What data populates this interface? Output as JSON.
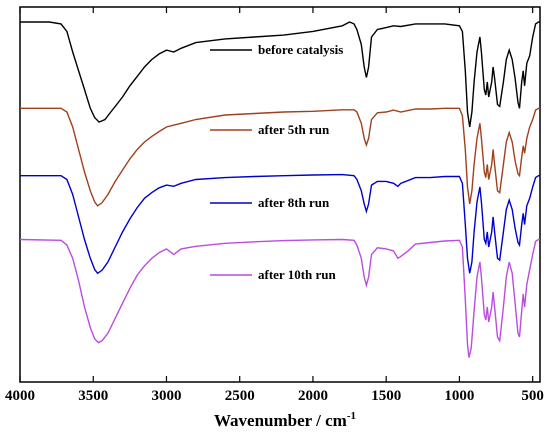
{
  "chart_data": {
    "type": "line",
    "xlabel": "Wavenumber / cm",
    "xlabel_sup": "-1",
    "xlim": [
      4000,
      450
    ],
    "x_reversed": true,
    "xticks": [
      4000,
      3500,
      3000,
      2500,
      2000,
      1500,
      1000,
      500
    ],
    "yticks_shown": false,
    "ylim": [
      0,
      1
    ],
    "legend_placement": "inline-per-series",
    "series": [
      {
        "name": "before catalysis",
        "color": "#000000",
        "points": [
          [
            4000,
            0.96
          ],
          [
            3800,
            0.96
          ],
          [
            3720,
            0.955
          ],
          [
            3680,
            0.935
          ],
          [
            3640,
            0.88
          ],
          [
            3600,
            0.83
          ],
          [
            3560,
            0.78
          ],
          [
            3520,
            0.73
          ],
          [
            3490,
            0.705
          ],
          [
            3460,
            0.693
          ],
          [
            3420,
            0.7
          ],
          [
            3380,
            0.72
          ],
          [
            3340,
            0.74
          ],
          [
            3300,
            0.76
          ],
          [
            3250,
            0.79
          ],
          [
            3200,
            0.815
          ],
          [
            3150,
            0.84
          ],
          [
            3100,
            0.86
          ],
          [
            3050,
            0.875
          ],
          [
            3000,
            0.885
          ],
          [
            2950,
            0.88
          ],
          [
            2900,
            0.89
          ],
          [
            2800,
            0.905
          ],
          [
            2600,
            0.915
          ],
          [
            2400,
            0.92
          ],
          [
            2200,
            0.925
          ],
          [
            2000,
            0.935
          ],
          [
            1800,
            0.95
          ],
          [
            1750,
            0.96
          ],
          [
            1720,
            0.955
          ],
          [
            1700,
            0.94
          ],
          [
            1670,
            0.9
          ],
          [
            1650,
            0.84
          ],
          [
            1635,
            0.812
          ],
          [
            1620,
            0.84
          ],
          [
            1600,
            0.92
          ],
          [
            1560,
            0.94
          ],
          [
            1500,
            0.945
          ],
          [
            1450,
            0.95
          ],
          [
            1400,
            0.948
          ],
          [
            1300,
            0.955
          ],
          [
            1200,
            0.955
          ],
          [
            1100,
            0.955
          ],
          [
            1000,
            0.95
          ],
          [
            980,
            0.935
          ],
          [
            960,
            0.83
          ],
          [
            945,
            0.72
          ],
          [
            930,
            0.68
          ],
          [
            915,
            0.72
          ],
          [
            900,
            0.8
          ],
          [
            880,
            0.88
          ],
          [
            860,
            0.92
          ],
          [
            850,
            0.88
          ],
          [
            830,
            0.78
          ],
          [
            820,
            0.765
          ],
          [
            810,
            0.8
          ],
          [
            800,
            0.76
          ],
          [
            780,
            0.8
          ],
          [
            770,
            0.84
          ],
          [
            760,
            0.81
          ],
          [
            740,
            0.74
          ],
          [
            725,
            0.735
          ],
          [
            700,
            0.8
          ],
          [
            680,
            0.86
          ],
          [
            660,
            0.885
          ],
          [
            640,
            0.86
          ],
          [
            620,
            0.81
          ],
          [
            600,
            0.745
          ],
          [
            590,
            0.73
          ],
          [
            575,
            0.8
          ],
          [
            565,
            0.83
          ],
          [
            555,
            0.79
          ],
          [
            540,
            0.85
          ],
          [
            520,
            0.87
          ],
          [
            500,
            0.92
          ],
          [
            480,
            0.955
          ],
          [
            460,
            0.96
          ],
          [
            450,
            0.96
          ]
        ]
      },
      {
        "name": "after 5th run",
        "color": "#a0401e",
        "points": [
          [
            4000,
            0.73
          ],
          [
            3720,
            0.73
          ],
          [
            3680,
            0.72
          ],
          [
            3640,
            0.68
          ],
          [
            3600,
            0.62
          ],
          [
            3560,
            0.56
          ],
          [
            3520,
            0.51
          ],
          [
            3490,
            0.48
          ],
          [
            3470,
            0.47
          ],
          [
            3440,
            0.478
          ],
          [
            3400,
            0.5
          ],
          [
            3350,
            0.535
          ],
          [
            3300,
            0.565
          ],
          [
            3250,
            0.595
          ],
          [
            3200,
            0.62
          ],
          [
            3150,
            0.64
          ],
          [
            3100,
            0.655
          ],
          [
            3050,
            0.668
          ],
          [
            3000,
            0.68
          ],
          [
            2950,
            0.685
          ],
          [
            2900,
            0.69
          ],
          [
            2800,
            0.7
          ],
          [
            2600,
            0.712
          ],
          [
            2400,
            0.716
          ],
          [
            2200,
            0.72
          ],
          [
            2000,
            0.722
          ],
          [
            1800,
            0.726
          ],
          [
            1720,
            0.726
          ],
          [
            1700,
            0.72
          ],
          [
            1670,
            0.69
          ],
          [
            1650,
            0.65
          ],
          [
            1635,
            0.632
          ],
          [
            1620,
            0.65
          ],
          [
            1600,
            0.7
          ],
          [
            1560,
            0.718
          ],
          [
            1500,
            0.72
          ],
          [
            1450,
            0.725
          ],
          [
            1400,
            0.72
          ],
          [
            1300,
            0.728
          ],
          [
            1200,
            0.728
          ],
          [
            1100,
            0.73
          ],
          [
            1000,
            0.73
          ],
          [
            980,
            0.71
          ],
          [
            960,
            0.62
          ],
          [
            945,
            0.52
          ],
          [
            930,
            0.475
          ],
          [
            915,
            0.51
          ],
          [
            900,
            0.58
          ],
          [
            880,
            0.65
          ],
          [
            860,
            0.69
          ],
          [
            850,
            0.65
          ],
          [
            830,
            0.56
          ],
          [
            820,
            0.545
          ],
          [
            810,
            0.58
          ],
          [
            800,
            0.54
          ],
          [
            780,
            0.58
          ],
          [
            770,
            0.62
          ],
          [
            760,
            0.58
          ],
          [
            740,
            0.51
          ],
          [
            725,
            0.505
          ],
          [
            700,
            0.58
          ],
          [
            680,
            0.64
          ],
          [
            660,
            0.665
          ],
          [
            640,
            0.64
          ],
          [
            620,
            0.59
          ],
          [
            600,
            0.555
          ],
          [
            590,
            0.55
          ],
          [
            575,
            0.6
          ],
          [
            565,
            0.63
          ],
          [
            555,
            0.61
          ],
          [
            540,
            0.65
          ],
          [
            520,
            0.68
          ],
          [
            500,
            0.7
          ],
          [
            480,
            0.725
          ],
          [
            460,
            0.73
          ],
          [
            450,
            0.73
          ]
        ]
      },
      {
        "name": "after 8th run",
        "color": "#0000cc",
        "points": [
          [
            4000,
            0.55
          ],
          [
            3720,
            0.55
          ],
          [
            3680,
            0.54
          ],
          [
            3640,
            0.5
          ],
          [
            3600,
            0.44
          ],
          [
            3560,
            0.38
          ],
          [
            3520,
            0.33
          ],
          [
            3490,
            0.3
          ],
          [
            3470,
            0.29
          ],
          [
            3440,
            0.298
          ],
          [
            3400,
            0.32
          ],
          [
            3350,
            0.36
          ],
          [
            3300,
            0.4
          ],
          [
            3250,
            0.435
          ],
          [
            3200,
            0.465
          ],
          [
            3150,
            0.49
          ],
          [
            3100,
            0.505
          ],
          [
            3050,
            0.518
          ],
          [
            3000,
            0.525
          ],
          [
            2950,
            0.522
          ],
          [
            2900,
            0.53
          ],
          [
            2800,
            0.54
          ],
          [
            2600,
            0.545
          ],
          [
            2400,
            0.548
          ],
          [
            2200,
            0.55
          ],
          [
            2000,
            0.552
          ],
          [
            1800,
            0.553
          ],
          [
            1720,
            0.55
          ],
          [
            1700,
            0.54
          ],
          [
            1670,
            0.51
          ],
          [
            1650,
            0.475
          ],
          [
            1635,
            0.455
          ],
          [
            1620,
            0.475
          ],
          [
            1600,
            0.525
          ],
          [
            1560,
            0.535
          ],
          [
            1500,
            0.535
          ],
          [
            1450,
            0.53
          ],
          [
            1420,
            0.522
          ],
          [
            1400,
            0.53
          ],
          [
            1300,
            0.545
          ],
          [
            1200,
            0.545
          ],
          [
            1100,
            0.548
          ],
          [
            1000,
            0.548
          ],
          [
            980,
            0.53
          ],
          [
            960,
            0.42
          ],
          [
            945,
            0.33
          ],
          [
            930,
            0.29
          ],
          [
            915,
            0.32
          ],
          [
            900,
            0.4
          ],
          [
            880,
            0.48
          ],
          [
            860,
            0.52
          ],
          [
            850,
            0.48
          ],
          [
            830,
            0.38
          ],
          [
            820,
            0.37
          ],
          [
            810,
            0.4
          ],
          [
            800,
            0.36
          ],
          [
            780,
            0.4
          ],
          [
            770,
            0.44
          ],
          [
            760,
            0.4
          ],
          [
            740,
            0.33
          ],
          [
            725,
            0.325
          ],
          [
            700,
            0.4
          ],
          [
            680,
            0.46
          ],
          [
            660,
            0.485
          ],
          [
            640,
            0.46
          ],
          [
            620,
            0.41
          ],
          [
            600,
            0.372
          ],
          [
            590,
            0.365
          ],
          [
            575,
            0.42
          ],
          [
            565,
            0.45
          ],
          [
            555,
            0.42
          ],
          [
            540,
            0.47
          ],
          [
            520,
            0.49
          ],
          [
            500,
            0.52
          ],
          [
            480,
            0.545
          ],
          [
            460,
            0.55
          ],
          [
            450,
            0.55
          ]
        ]
      },
      {
        "name": "after 10th run",
        "color": "#b94de0",
        "points": [
          [
            4000,
            0.38
          ],
          [
            3720,
            0.378
          ],
          [
            3680,
            0.365
          ],
          [
            3640,
            0.33
          ],
          [
            3600,
            0.27
          ],
          [
            3560,
            0.2
          ],
          [
            3520,
            0.145
          ],
          [
            3490,
            0.115
          ],
          [
            3465,
            0.105
          ],
          [
            3440,
            0.11
          ],
          [
            3400,
            0.13
          ],
          [
            3350,
            0.17
          ],
          [
            3300,
            0.21
          ],
          [
            3250,
            0.25
          ],
          [
            3200,
            0.285
          ],
          [
            3150,
            0.31
          ],
          [
            3100,
            0.33
          ],
          [
            3050,
            0.345
          ],
          [
            3000,
            0.355
          ],
          [
            2950,
            0.34
          ],
          [
            2900,
            0.355
          ],
          [
            2800,
            0.362
          ],
          [
            2600,
            0.37
          ],
          [
            2400,
            0.374
          ],
          [
            2200,
            0.377
          ],
          [
            2000,
            0.379
          ],
          [
            1800,
            0.38
          ],
          [
            1720,
            0.378
          ],
          [
            1700,
            0.365
          ],
          [
            1670,
            0.33
          ],
          [
            1650,
            0.28
          ],
          [
            1635,
            0.258
          ],
          [
            1620,
            0.28
          ],
          [
            1600,
            0.34
          ],
          [
            1560,
            0.358
          ],
          [
            1500,
            0.355
          ],
          [
            1450,
            0.35
          ],
          [
            1420,
            0.33
          ],
          [
            1400,
            0.335
          ],
          [
            1350,
            0.35
          ],
          [
            1300,
            0.368
          ],
          [
            1200,
            0.372
          ],
          [
            1100,
            0.376
          ],
          [
            1000,
            0.378
          ],
          [
            980,
            0.36
          ],
          [
            960,
            0.22
          ],
          [
            945,
            0.1
          ],
          [
            935,
            0.065
          ],
          [
            920,
            0.09
          ],
          [
            900,
            0.19
          ],
          [
            880,
            0.28
          ],
          [
            860,
            0.32
          ],
          [
            850,
            0.28
          ],
          [
            830,
            0.18
          ],
          [
            820,
            0.165
          ],
          [
            810,
            0.2
          ],
          [
            800,
            0.16
          ],
          [
            780,
            0.2
          ],
          [
            770,
            0.24
          ],
          [
            760,
            0.2
          ],
          [
            740,
            0.12
          ],
          [
            725,
            0.11
          ],
          [
            700,
            0.2
          ],
          [
            680,
            0.28
          ],
          [
            660,
            0.32
          ],
          [
            640,
            0.29
          ],
          [
            620,
            0.21
          ],
          [
            600,
            0.13
          ],
          [
            590,
            0.12
          ],
          [
            575,
            0.19
          ],
          [
            565,
            0.235
          ],
          [
            555,
            0.2
          ],
          [
            540,
            0.26
          ],
          [
            520,
            0.3
          ],
          [
            500,
            0.34
          ],
          [
            480,
            0.375
          ],
          [
            460,
            0.38
          ],
          [
            450,
            0.38
          ]
        ]
      }
    ]
  }
}
